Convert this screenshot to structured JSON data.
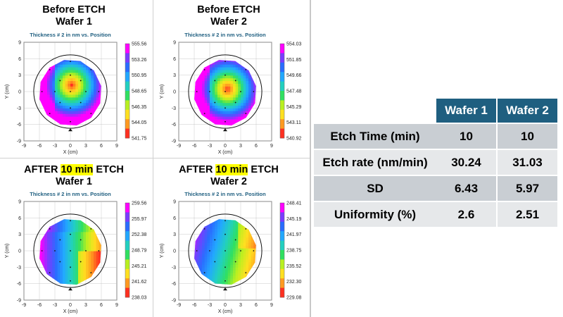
{
  "panels": [
    {
      "title_lines": [
        {
          "parts": [
            {
              "text": "Before ETCH",
              "hl": false
            }
          ]
        },
        {
          "parts": [
            {
              "text": "Wafer 1",
              "hl": false
            }
          ]
        }
      ],
      "subtitle": "Thickness # 2 in nm vs. Position",
      "xlabel": "X (cm)",
      "ylabel": "Y (cm)",
      "xticks": [
        "-9",
        "-6",
        "-3",
        "0",
        "3",
        "6",
        "9"
      ],
      "yticks": [
        "9",
        "6",
        "3",
        "0",
        "-3",
        "-6",
        "-9"
      ],
      "colorbar": [
        "555.56",
        "553.26",
        "550.95",
        "548.65",
        "546.35",
        "544.05",
        "541.75"
      ],
      "center": [
        0,
        1
      ],
      "radius": 6.2
    },
    {
      "title_lines": [
        {
          "parts": [
            {
              "text": "Before ETCH",
              "hl": false
            }
          ]
        },
        {
          "parts": [
            {
              "text": "Wafer 2",
              "hl": false
            }
          ]
        }
      ],
      "subtitle": "Thickness # 2 in nm vs. Position",
      "xlabel": "X (cm)",
      "ylabel": "Y (cm)",
      "xticks": [
        "-9",
        "-6",
        "-3",
        "0",
        "3",
        "6",
        "9"
      ],
      "yticks": [
        "9",
        "6",
        "3",
        "0",
        "-3",
        "-6",
        "-9"
      ],
      "colorbar": [
        "554.03",
        "551.85",
        "549.66",
        "547.48",
        "545.29",
        "543.11",
        "540.92"
      ],
      "center": [
        0.2,
        0.3
      ],
      "radius": 6.2
    },
    {
      "title_lines": [
        {
          "parts": [
            {
              "text": "AFTER ",
              "hl": false
            },
            {
              "text": "10 min",
              "hl": true
            },
            {
              "text": " ETCH",
              "hl": false
            }
          ]
        },
        {
          "parts": [
            {
              "text": "Wafer 1",
              "hl": false
            }
          ]
        }
      ],
      "subtitle": "Thickness # 2 in nm vs. Position",
      "xlabel": "X (cm)",
      "ylabel": "Y (cm)",
      "xticks": [
        "-9",
        "-6",
        "-3",
        "0",
        "3",
        "6",
        "9"
      ],
      "yticks": [
        "9",
        "6",
        "3",
        "0",
        "-3",
        "-6",
        "-9"
      ],
      "colorbar": [
        "259.56",
        "255.97",
        "252.38",
        "248.79",
        "245.21",
        "241.62",
        "238.03"
      ],
      "gradient": "vertical"
    },
    {
      "title_lines": [
        {
          "parts": [
            {
              "text": "AFTER ",
              "hl": false
            },
            {
              "text": "10 min",
              "hl": true
            },
            {
              "text": " ETCH",
              "hl": false
            }
          ]
        },
        {
          "parts": [
            {
              "text": "Wafer 2",
              "hl": false
            }
          ]
        }
      ],
      "subtitle": "Thickness # 2 in nm vs. Position",
      "xlabel": "X (cm)",
      "ylabel": "Y (cm)",
      "xticks": [
        "-9",
        "-6",
        "-3",
        "0",
        "3",
        "6",
        "9"
      ],
      "yticks": [
        "9",
        "6",
        "3",
        "0",
        "-3",
        "-6",
        "-9"
      ],
      "colorbar": [
        "248.41",
        "245.19",
        "241.97",
        "238.75",
        "235.52",
        "232.30",
        "229.08"
      ],
      "gradient": "diagonal"
    }
  ],
  "colors": {
    "scale": [
      "#ff00ff",
      "#7a3cff",
      "#2a6cff",
      "#22a8ff",
      "#22d0c0",
      "#30e060",
      "#b8f020",
      "#ffe020",
      "#ff9a20",
      "#ff3020"
    ],
    "header_bg": "#1f5f80"
  },
  "chart_data": [
    {
      "type": "heatmap",
      "title": "Before ETCH Wafer 1",
      "subtitle": "Thickness # 2 in nm vs. Position",
      "xlabel": "X (cm)",
      "ylabel": "Y (cm)",
      "xlim": [
        -9,
        9
      ],
      "ylim": [
        -9,
        9
      ],
      "colorbar_range": [
        541.75,
        555.56
      ],
      "description_values": {
        "max_region_center": [
          0,
          1
        ]
      }
    },
    {
      "type": "heatmap",
      "title": "Before ETCH Wafer 2",
      "subtitle": "Thickness # 2 in nm vs. Position",
      "xlabel": "X (cm)",
      "ylabel": "Y (cm)",
      "xlim": [
        -9,
        9
      ],
      "ylim": [
        -9,
        9
      ],
      "colorbar_range": [
        540.92,
        554.03
      ]
    },
    {
      "type": "heatmap",
      "title": "AFTER 10 min ETCH Wafer 1",
      "subtitle": "Thickness # 2 in nm vs. Position",
      "xlabel": "X (cm)",
      "ylabel": "Y (cm)",
      "xlim": [
        -9,
        9
      ],
      "ylim": [
        -9,
        9
      ],
      "colorbar_range": [
        238.03,
        259.56
      ]
    },
    {
      "type": "heatmap",
      "title": "AFTER 10 min ETCH Wafer 2",
      "subtitle": "Thickness # 2 in nm vs. Position",
      "xlabel": "X (cm)",
      "ylabel": "Y (cm)",
      "xlim": [
        -9,
        9
      ],
      "ylim": [
        -9,
        9
      ],
      "colorbar_range": [
        229.08,
        248.41
      ]
    },
    {
      "type": "table",
      "columns": [
        "",
        "Wafer 1",
        "Wafer 2"
      ],
      "rows": [
        [
          "Etch Time (min)",
          "10",
          "10"
        ],
        [
          "Etch rate (nm/min)",
          "30.24",
          "31.03"
        ],
        [
          "SD",
          "6.43",
          "5.97"
        ],
        [
          "Uniformity (%)",
          "2.6",
          "2.51"
        ]
      ]
    }
  ]
}
